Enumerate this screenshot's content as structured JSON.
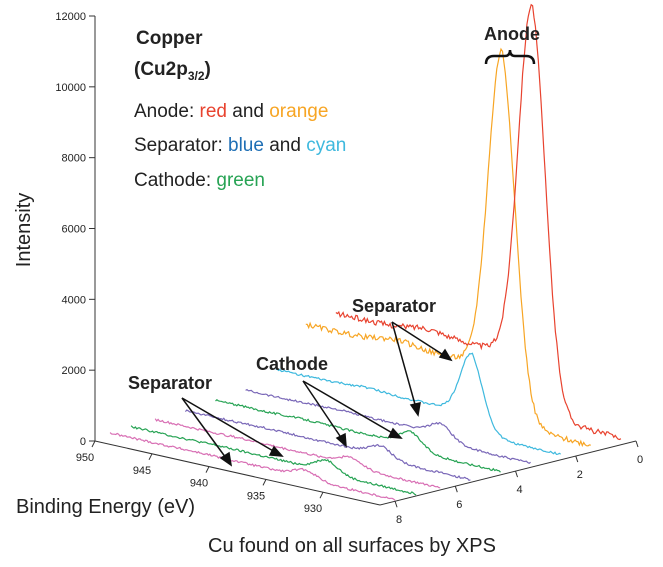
{
  "chart_data": {
    "type": "line",
    "title_line1": "Copper",
    "title_line2_base": "(Cu2p",
    "title_line2_sub": "3/2",
    "title_line2_end": ")",
    "ylabel": "Intensity",
    "xlabel": "Binding Energy (eV)",
    "caption": "Cu found on all surfaces by XPS",
    "y_ticks": [
      0,
      2000,
      4000,
      6000,
      8000,
      10000,
      12000
    ],
    "x_ticks": [
      950,
      945,
      940,
      935,
      930
    ],
    "z_ticks": [
      0,
      2,
      4,
      6,
      8
    ],
    "ylim": [
      0,
      12000
    ],
    "xlim": [
      950,
      925
    ],
    "zlim": [
      0,
      8.5
    ],
    "legend": {
      "anode_label": "Anode: ",
      "anode_c1": "red",
      "anode_and": " and ",
      "anode_c2": "orange",
      "sep_label": "Separator: ",
      "sep_c1": "blue",
      "sep_and": " and ",
      "sep_c2": "cyan",
      "cath_label": "Cathode: ",
      "cath_c1": "green"
    },
    "annotations": {
      "anode": "Anode",
      "separator_upper": "Separator",
      "cathode": "Cathode",
      "separator_lower": "Separator"
    },
    "colors": {
      "red": "#e8432f",
      "orange": "#f7a524",
      "blue": "#1f6fb5",
      "cyan": "#3fb9de",
      "green": "#27a354",
      "purple": "#7a68b8",
      "pink": "#d86fb4"
    },
    "series": [
      {
        "color_key": "red",
        "z": 0.5,
        "peak_x": 932.8,
        "peak": 10000,
        "width": 1.2,
        "base": 1900,
        "tail": 200
      },
      {
        "color_key": "orange",
        "z": 1.5,
        "peak_x": 932.8,
        "peak": 9000,
        "width": 1.2,
        "base": 1800,
        "tail": 200
      },
      {
        "color_key": "cyan",
        "z": 2.5,
        "peak_x": 932.8,
        "peak": 1700,
        "width": 1.0,
        "base": 750,
        "tail": 150
      },
      {
        "color_key": "purple",
        "z": 3.5,
        "peak_x": 932.8,
        "peak": 300,
        "width": 1.0,
        "base": 380,
        "tail": 120
      },
      {
        "color_key": "green",
        "z": 4.5,
        "peak_x": 932.8,
        "peak": 350,
        "width": 1.0,
        "base": 300,
        "tail": 100
      },
      {
        "color_key": "purple",
        "z": 5.5,
        "peak_x": 932.8,
        "peak": 250,
        "width": 1.0,
        "base": 220,
        "tail": 80
      },
      {
        "color_key": "pink",
        "z": 6.5,
        "peak_x": 932.8,
        "peak": 180,
        "width": 1.0,
        "base": 180,
        "tail": 60
      },
      {
        "color_key": "green",
        "z": 7.3,
        "peak_x": 932.8,
        "peak": 300,
        "width": 1.0,
        "base": 150,
        "tail": 60
      },
      {
        "color_key": "pink",
        "z": 8.0,
        "peak_x": 932.8,
        "peak": 200,
        "width": 1.0,
        "base": 120,
        "tail": 50
      }
    ]
  }
}
